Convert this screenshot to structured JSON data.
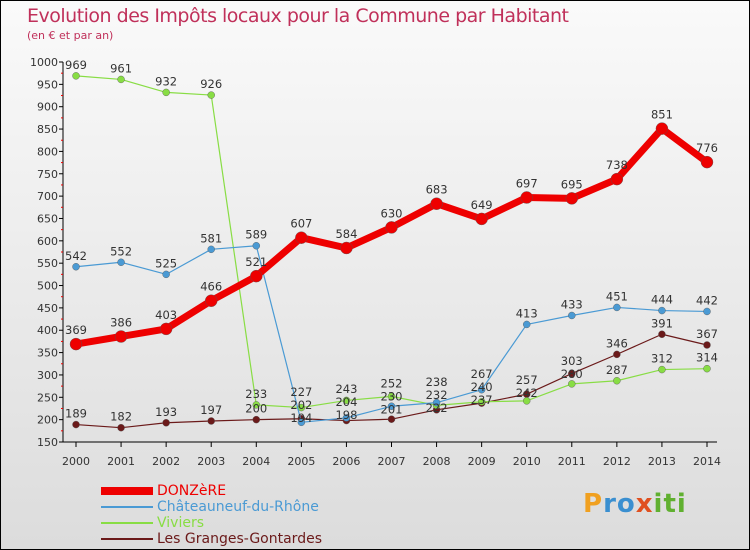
{
  "chart_data": {
    "type": "line",
    "title": "Evolution des Impôts locaux pour la Commune par Habitant",
    "subtitle": "(en € et par an)",
    "x": [
      2000,
      2001,
      2002,
      2003,
      2004,
      2005,
      2006,
      2007,
      2008,
      2009,
      2010,
      2011,
      2012,
      2013,
      2014
    ],
    "yticks": [
      150,
      200,
      250,
      300,
      350,
      400,
      450,
      500,
      550,
      600,
      650,
      700,
      750,
      800,
      850,
      900,
      950,
      1000
    ],
    "ylim": [
      150,
      1000
    ],
    "series": [
      {
        "name": "DONZèRE",
        "color": "#ee0000",
        "width": 7,
        "values": [
          369,
          386,
          403,
          466,
          521,
          607,
          584,
          630,
          683,
          649,
          697,
          695,
          738,
          851,
          776
        ]
      },
      {
        "name": "Châteauneuf-du-Rhône",
        "color": "#4a9ad4",
        "width": 1.2,
        "values": [
          542,
          552,
          525,
          581,
          589,
          194,
          204,
          230,
          238,
          267,
          413,
          433,
          451,
          444,
          442
        ]
      },
      {
        "name": "Viviers",
        "color": "#88dd44",
        "width": 1.2,
        "values": [
          969,
          961,
          932,
          926,
          233,
          227,
          243,
          252,
          232,
          240,
          242,
          280,
          287,
          312,
          314
        ]
      },
      {
        "name": "Les Granges-Gontardes",
        "color": "#6b1a1a",
        "width": 1.2,
        "values": [
          189,
          182,
          193,
          197,
          200,
          202,
          198,
          201,
          222,
          237,
          257,
          303,
          346,
          391,
          367
        ]
      }
    ]
  },
  "logo": "Proxiti"
}
